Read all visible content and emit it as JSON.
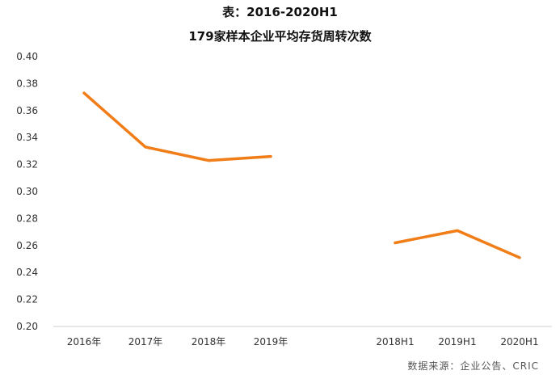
{
  "title_line1": "表：2016-2020H1",
  "title_line2": "179家样本企业平均存货周转次数",
  "source": "数据来源：企业公告、CRIC",
  "chart_data": {
    "type": "line",
    "title": "179家样本企业平均存货周转次数",
    "categories": [
      "2016年",
      "2017年",
      "2018年",
      "2019年",
      "2018H1",
      "2019H1",
      "2020H1"
    ],
    "series": [
      {
        "color": "#F07D18",
        "segments": [
          {
            "categories": [
              "2016年",
              "2017年",
              "2018年",
              "2019年"
            ],
            "values": [
              0.373,
              0.333,
              0.323,
              0.326
            ]
          },
          {
            "categories": [
              "2018H1",
              "2019H1",
              "2020H1"
            ],
            "values": [
              0.262,
              0.271,
              0.251
            ]
          }
        ]
      }
    ],
    "yticks": [
      "0.40",
      "0.38",
      "0.36",
      "0.34",
      "0.32",
      "0.30",
      "0.28",
      "0.26",
      "0.24",
      "0.22",
      "0.20"
    ],
    "ylim": [
      0.2,
      0.4
    ],
    "grid": false,
    "xlabel": "",
    "ylabel": ""
  }
}
